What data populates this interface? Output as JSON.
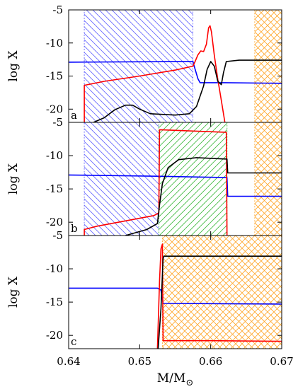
{
  "chart_data": {
    "type": "line",
    "layout": "three vertically stacked panels sharing the x axis",
    "xlabel": "M/M",
    "xlabel_subscript": "⊙",
    "xlim": [
      0.64,
      0.67
    ],
    "xticks": [
      0.64,
      0.65,
      0.66,
      0.67
    ],
    "xtick_labels": [
      "0.64",
      "0.65",
      "0.66",
      "0.67"
    ],
    "colors": {
      "red": "#ff0000",
      "black": "#000000",
      "blue": "#0000ff",
      "hatch_blue": "#6a6aff",
      "hatch_green": "#44bb44",
      "hatch_orange": "#ffaa33"
    },
    "panels": [
      {
        "tag": "a",
        "ylabel": "log X",
        "ylim": [
          -22,
          -5
        ],
        "yticks": [
          -5,
          -10,
          -15,
          -20
        ],
        "ytick_labels": [
          "-5",
          "-10",
          "-15",
          "-20"
        ],
        "regions": [
          {
            "x0": 0.6422,
            "x1": 0.6575,
            "hatch": "diag",
            "color": "#6a6aff"
          },
          {
            "x0": 0.6662,
            "x1": 0.67,
            "hatch": "cross",
            "color": "#ffaa33"
          }
        ],
        "series": [
          {
            "color": "#0000ff",
            "points": [
              [
                0.64,
                -12.9
              ],
              [
                0.6575,
                -12.8
              ],
              [
                0.6577,
                -13.6
              ],
              [
                0.6582,
                -15.4
              ],
              [
                0.6585,
                -16.0
              ],
              [
                0.6595,
                -16.0
              ],
              [
                0.662,
                -16.0
              ],
              [
                0.67,
                -16.1
              ]
            ]
          },
          {
            "color": "#ff0000",
            "points": [
              [
                0.6422,
                -22
              ],
              [
                0.6422,
                -16.4
              ],
              [
                0.645,
                -15.8
              ],
              [
                0.65,
                -15.0
              ],
              [
                0.655,
                -14.1
              ],
              [
                0.6575,
                -13.5
              ],
              [
                0.6578,
                -12.8
              ],
              [
                0.6582,
                -11.8
              ],
              [
                0.6586,
                -11.2
              ],
              [
                0.659,
                -11.3
              ],
              [
                0.6594,
                -10.2
              ],
              [
                0.6597,
                -7.7
              ],
              [
                0.6599,
                -7.4
              ],
              [
                0.6601,
                -8.3
              ],
              [
                0.6605,
                -11.8
              ],
              [
                0.661,
                -15.5
              ],
              [
                0.6615,
                -18.7
              ],
              [
                0.662,
                -22
              ]
            ]
          },
          {
            "color": "#000000",
            "points": [
              [
                0.6435,
                -22
              ],
              [
                0.645,
                -21.3
              ],
              [
                0.6465,
                -20.1
              ],
              [
                0.648,
                -19.4
              ],
              [
                0.649,
                -19.4
              ],
              [
                0.65,
                -20.0
              ],
              [
                0.6515,
                -20.7
              ],
              [
                0.655,
                -20.9
              ],
              [
                0.657,
                -20.7
              ],
              [
                0.658,
                -19.6
              ],
              [
                0.659,
                -16.5
              ],
              [
                0.6595,
                -14.0
              ],
              [
                0.66,
                -12.8
              ],
              [
                0.6605,
                -13.5
              ],
              [
                0.661,
                -15.8
              ],
              [
                0.6615,
                -16.3
              ],
              [
                0.6618,
                -14.5
              ],
              [
                0.6622,
                -12.8
              ],
              [
                0.664,
                -12.6
              ],
              [
                0.67,
                -12.6
              ]
            ]
          }
        ]
      },
      {
        "tag": "b",
        "ylabel": "log X",
        "ylim": [
          -22,
          -5
        ],
        "yticks": [
          -5,
          -10,
          -15,
          -20
        ],
        "ytick_labels": [
          "-5",
          "-10",
          "-15",
          "-20"
        ],
        "regions": [
          {
            "x0": 0.6422,
            "x1": 0.6527,
            "hatch": "diag",
            "color": "#6a6aff"
          },
          {
            "x0": 0.6527,
            "x1": 0.6623,
            "hatch": "anti",
            "color": "#44bb44"
          },
          {
            "x0": 0.6662,
            "x1": 0.67,
            "hatch": "cross",
            "color": "#ffaa33"
          }
        ],
        "series": [
          {
            "color": "#0000ff",
            "points": [
              [
                0.64,
                -12.9
              ],
              [
                0.6525,
                -13.1
              ],
              [
                0.6623,
                -13.3
              ],
              [
                0.6624,
                -16.1
              ],
              [
                0.67,
                -16.1
              ]
            ]
          },
          {
            "color": "#ff0000",
            "points": [
              [
                0.6422,
                -22
              ],
              [
                0.6422,
                -21.1
              ],
              [
                0.644,
                -20.6
              ],
              [
                0.648,
                -19.8
              ],
              [
                0.652,
                -19.0
              ],
              [
                0.6527,
                -18.6
              ],
              [
                0.6528,
                -6.1
              ],
              [
                0.6622,
                -6.5
              ],
              [
                0.6623,
                -22
              ]
            ]
          },
          {
            "color": "#000000",
            "points": [
              [
                0.648,
                -22
              ],
              [
                0.651,
                -21.1
              ],
              [
                0.6525,
                -20.2
              ],
              [
                0.6528,
                -17.4
              ],
              [
                0.6532,
                -14.2
              ],
              [
                0.654,
                -11.8
              ],
              [
                0.6555,
                -10.6
              ],
              [
                0.658,
                -10.3
              ],
              [
                0.662,
                -10.5
              ],
              [
                0.6623,
                -10.5
              ],
              [
                0.6624,
                -12.6
              ],
              [
                0.67,
                -12.6
              ]
            ]
          }
        ]
      },
      {
        "tag": "c",
        "ylabel": "log X",
        "ylim": [
          -22,
          -5
        ],
        "yticks": [
          -5,
          -10,
          -15,
          -20
        ],
        "ytick_labels": [
          "-5",
          "-10",
          "-15",
          "-20"
        ],
        "regions": [
          {
            "x0": 0.6532,
            "x1": 0.67,
            "hatch": "cross",
            "color": "#ffaa33"
          }
        ],
        "series": [
          {
            "color": "#0000ff",
            "points": [
              [
                0.64,
                -12.9
              ],
              [
                0.6525,
                -12.9
              ],
              [
                0.653,
                -13.2
              ],
              [
                0.6533,
                -15.2
              ],
              [
                0.67,
                -15.3
              ]
            ]
          },
          {
            "color": "#ff0000",
            "points": [
              [
                0.6525,
                -22
              ],
              [
                0.6528,
                -11.8
              ],
              [
                0.653,
                -7.0
              ],
              [
                0.6532,
                -6.3
              ],
              [
                0.6533,
                -20.8
              ],
              [
                0.66,
                -20.8
              ],
              [
                0.67,
                -20.9
              ]
            ]
          },
          {
            "color": "#000000",
            "points": [
              [
                0.6526,
                -22
              ],
              [
                0.653,
                -16.0
              ],
              [
                0.6533,
                -8.5
              ],
              [
                0.6534,
                -8.1
              ],
              [
                0.67,
                -8.1
              ]
            ]
          }
        ]
      }
    ]
  }
}
